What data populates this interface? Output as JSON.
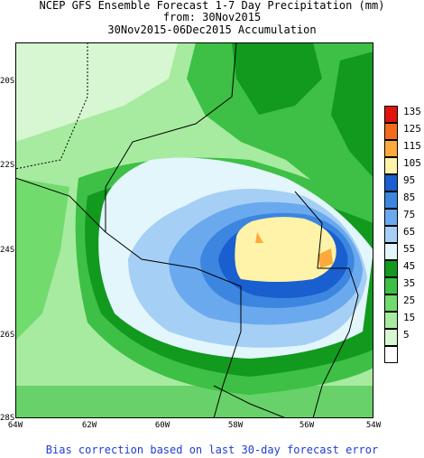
{
  "title": {
    "line1": "NCEP GFS Ensemble Forecast 1-7 Day Precipitation (mm)",
    "line2": "from: 30Nov2015",
    "line3": "30Nov2015-06Dec2015 Accumulation"
  },
  "lat_labels": [
    "20S",
    "22S",
    "24S",
    "26S",
    "28S"
  ],
  "lon_labels": [
    "64W",
    "62W",
    "60W",
    "58W",
    "56W",
    "54W"
  ],
  "legend": [
    {
      "label": "135",
      "color": "#e0140c"
    },
    {
      "label": "125",
      "color": "#f46b1c"
    },
    {
      "label": "115",
      "color": "#fdaa3c"
    },
    {
      "label": "105",
      "color": "#fef3a8"
    },
    {
      "label": "95",
      "color": "#1a5fcf"
    },
    {
      "label": "85",
      "color": "#3c86e0"
    },
    {
      "label": "75",
      "color": "#6aa9ee"
    },
    {
      "label": "65",
      "color": "#a6cff5"
    },
    {
      "label": "55",
      "color": "#e2f6fb"
    },
    {
      "label": "45",
      "color": "#119a1e"
    },
    {
      "label": "35",
      "color": "#3dc045"
    },
    {
      "label": "25",
      "color": "#72db6e"
    },
    {
      "label": "15",
      "color": "#a7eba0"
    },
    {
      "label": "5",
      "color": "#d7f7d2"
    },
    {
      "label": "",
      "color": "#ffffff"
    }
  ],
  "footer": "Bias correction based on last 30-day forecast error"
}
